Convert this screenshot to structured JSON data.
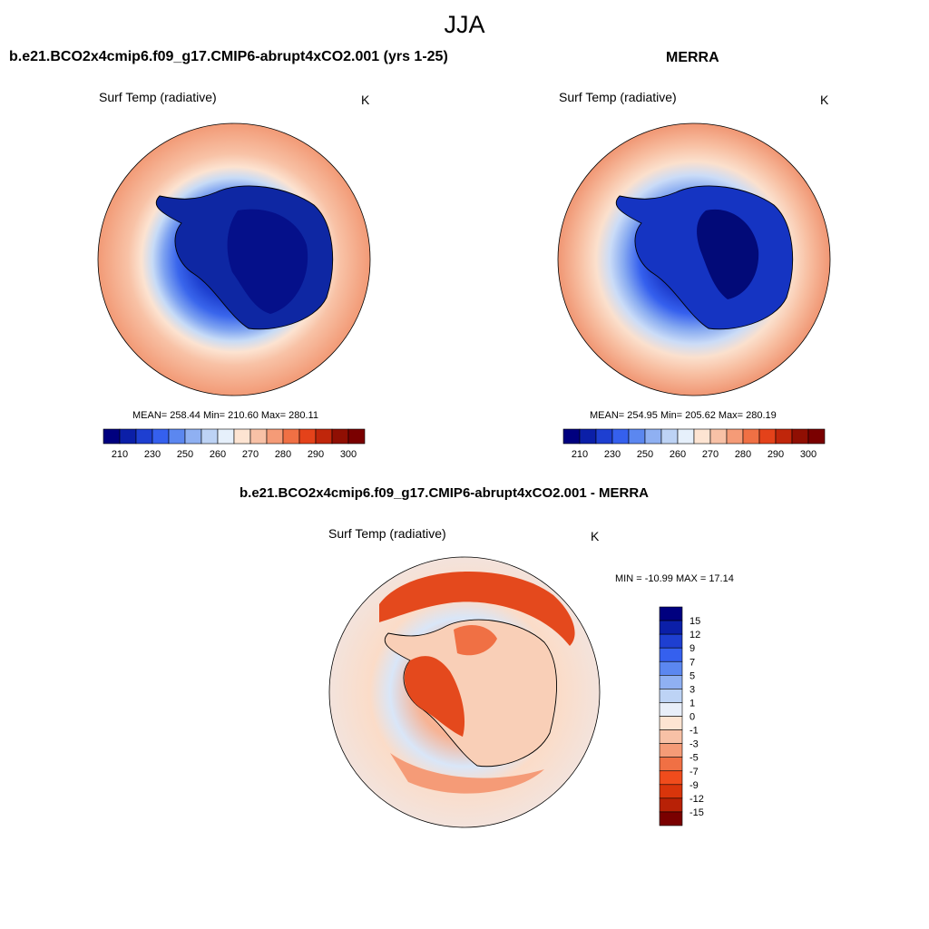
{
  "title": "JJA",
  "panels": [
    {
      "title": "b.e21.BCO2x4cmip6.f09_g17.CMIP6-abrupt4xCO2.001 (yrs 1-25)",
      "variable": "Surf Temp (radiative)",
      "units": "K",
      "stats": "MEAN= 258.44  Min= 210.60  Max= 280.11"
    },
    {
      "title": "MERRA",
      "variable": "Surf Temp (radiative)",
      "units": "K",
      "stats": "MEAN= 254.95  Min= 205.62  Max= 280.19"
    },
    {
      "title": "b.e21.BCO2x4cmip6.f09_g17.CMIP6-abrupt4xCO2.001 - MERRA",
      "variable": "Surf Temp (radiative)",
      "units": "K",
      "stats": "MIN = -10.99 MAX =  17.14"
    }
  ],
  "colorbar_abs": {
    "colors": [
      "#00007f",
      "#0b1fa8",
      "#1e3fd1",
      "#3560ee",
      "#5b87f0",
      "#8fb0f2",
      "#bdd3f5",
      "#e6f0fb",
      "#fde4d2",
      "#f8c1a6",
      "#f59b77",
      "#f07044",
      "#e4421a",
      "#c0260b",
      "#900f03",
      "#7a0000"
    ],
    "labels": [
      "210",
      "230",
      "250",
      "260",
      "270",
      "280",
      "290",
      "300"
    ]
  },
  "colorbar_diff": {
    "colors": [
      "#00007f",
      "#0b1fa8",
      "#1e3fd1",
      "#3560ee",
      "#5b87f0",
      "#8fb0f2",
      "#bdd3f5",
      "#e8eef9",
      "#fde4d2",
      "#f8c1a6",
      "#f59b77",
      "#f07044",
      "#f04c1c",
      "#d9350b",
      "#b82106",
      "#7a0000"
    ],
    "labels": [
      "15",
      "12",
      "9",
      "7",
      "5",
      "3",
      "1",
      "0",
      "-1",
      "-3",
      "-5",
      "-7",
      "-9",
      "-12",
      "-15"
    ]
  }
}
